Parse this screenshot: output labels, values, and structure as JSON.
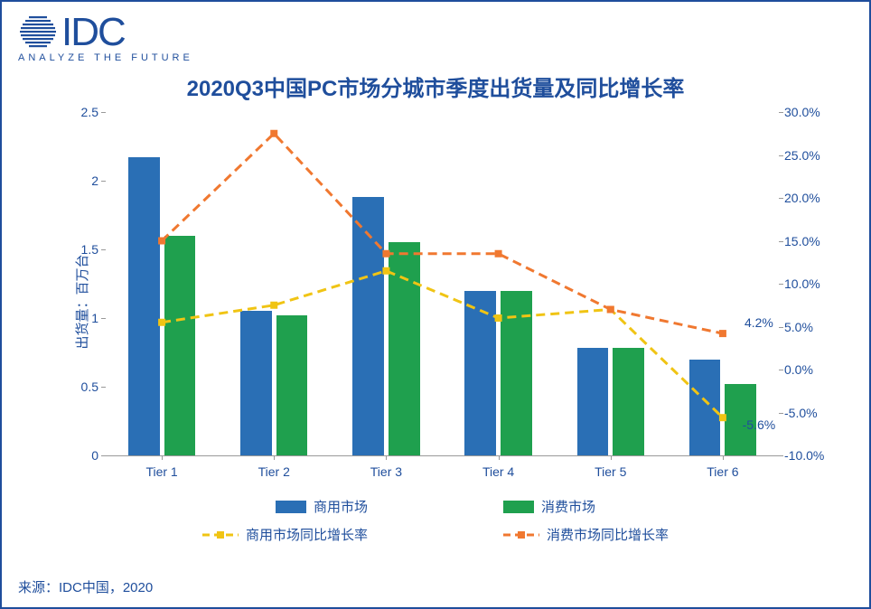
{
  "logo": {
    "text": "IDC",
    "tagline": "ANALYZE THE FUTURE"
  },
  "chart": {
    "type": "bar+line",
    "title": "2020Q3中国PC市场分城市季度出货量及同比增长率",
    "categories": [
      "Tier 1",
      "Tier 2",
      "Tier 3",
      "Tier 4",
      "Tier 5",
      "Tier 6"
    ],
    "left_axis": {
      "label": "出货量：百万台",
      "min": 0,
      "max": 2.5,
      "step": 0.5,
      "ticks": [
        0,
        0.5,
        1,
        1.5,
        2,
        2.5
      ]
    },
    "right_axis": {
      "min": -10,
      "max": 30,
      "step": 5,
      "ticks": [
        -10,
        -5,
        0,
        5,
        10,
        15,
        20,
        25,
        30
      ],
      "tick_labels": [
        "-10.0%",
        "-5.0%",
        "0.0%",
        "5.0%",
        "10.0%",
        "15.0%",
        "20.0%",
        "25.0%",
        "30.0%"
      ]
    },
    "bars": {
      "series": [
        {
          "name": "商用市场",
          "color": "#2a6fb5",
          "values": [
            2.17,
            1.05,
            1.88,
            1.2,
            0.78,
            0.7
          ]
        },
        {
          "name": "消费市场",
          "color": "#1fa04e",
          "values": [
            1.6,
            1.02,
            1.55,
            1.2,
            0.78,
            0.52
          ]
        }
      ],
      "bar_width_frac": 0.28,
      "gap_frac": 0.04
    },
    "lines": {
      "series": [
        {
          "name": "商用市场同比增长率",
          "color": "#f0c414",
          "dash": true,
          "values": [
            5.5,
            7.5,
            11.5,
            6.0,
            7.0,
            -5.6
          ]
        },
        {
          "name": "消费市场同比增长率",
          "color": "#f07830",
          "dash": true,
          "values": [
            15.0,
            27.5,
            13.5,
            13.5,
            7.0,
            4.2
          ]
        }
      ],
      "end_labels": [
        {
          "series_idx": 1,
          "text": "4.2%",
          "dy": -12
        },
        {
          "series_idx": 0,
          "text": "-5.6%",
          "dy": 8
        }
      ]
    },
    "legend": {
      "rows": [
        [
          {
            "type": "box",
            "color": "#2a6fb5",
            "label": "商用市场"
          },
          {
            "type": "box",
            "color": "#1fa04e",
            "label": "消费市场"
          }
        ],
        [
          {
            "type": "line",
            "color": "#f0c414",
            "label": "商用市场同比增长率"
          },
          {
            "type": "line",
            "color": "#f07830",
            "label": "消费市场同比增长率"
          }
        ]
      ]
    },
    "colors": {
      "title": "#1f4e9c",
      "axis_text": "#1f4e9c",
      "axis_line": "#999999",
      "background": "#ffffff",
      "border": "#1f4e9c"
    },
    "typography": {
      "title_fontsize": 24,
      "axis_label_fontsize": 15,
      "tick_fontsize": 14,
      "legend_fontsize": 15
    }
  },
  "source": "来源：IDC中国，2020"
}
